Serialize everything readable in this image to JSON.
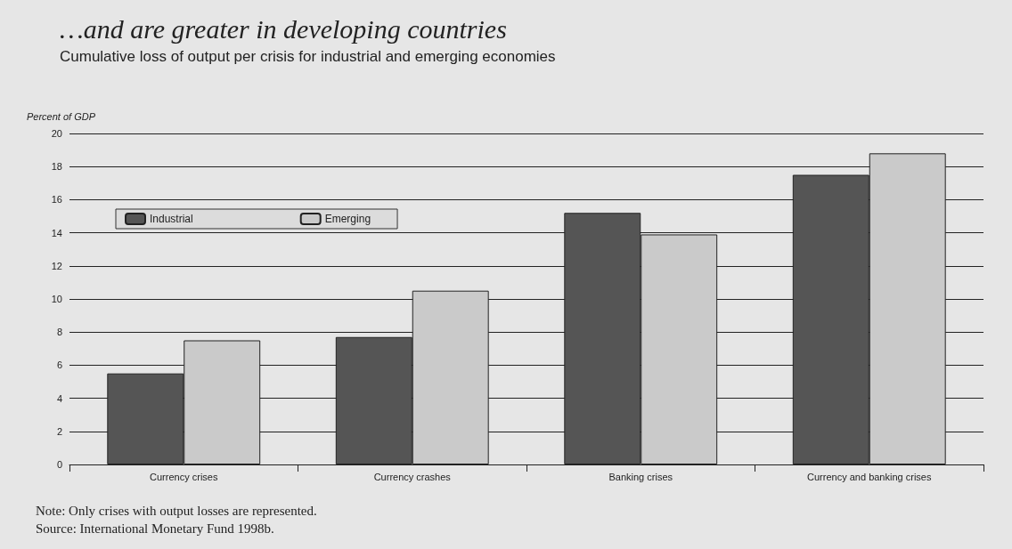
{
  "chart_data": {
    "type": "bar",
    "title": "…and are greater in developing countries",
    "subtitle": "Cumulative loss of output per crisis for industrial and emerging economies",
    "ylabel": "Percent of GDP",
    "categories": [
      "Currency crises",
      "Currency crashes",
      "Banking crises",
      "Currency and banking crises"
    ],
    "series": [
      {
        "name": "Industrial",
        "color": "#555555",
        "values": [
          5.5,
          7.7,
          15.2,
          17.5
        ]
      },
      {
        "name": "Emerging",
        "color": "#cacaca",
        "values": [
          7.5,
          10.5,
          13.9,
          18.8
        ]
      }
    ],
    "ylim": [
      0,
      20
    ],
    "yticks": [
      0,
      2,
      4,
      6,
      8,
      10,
      12,
      14,
      16,
      18,
      20
    ],
    "grid": "y",
    "legend": "top left",
    "annotations": [
      "Note: Only crises with output losses are represented.",
      "Source: International Monetary Fund 1998b."
    ]
  }
}
